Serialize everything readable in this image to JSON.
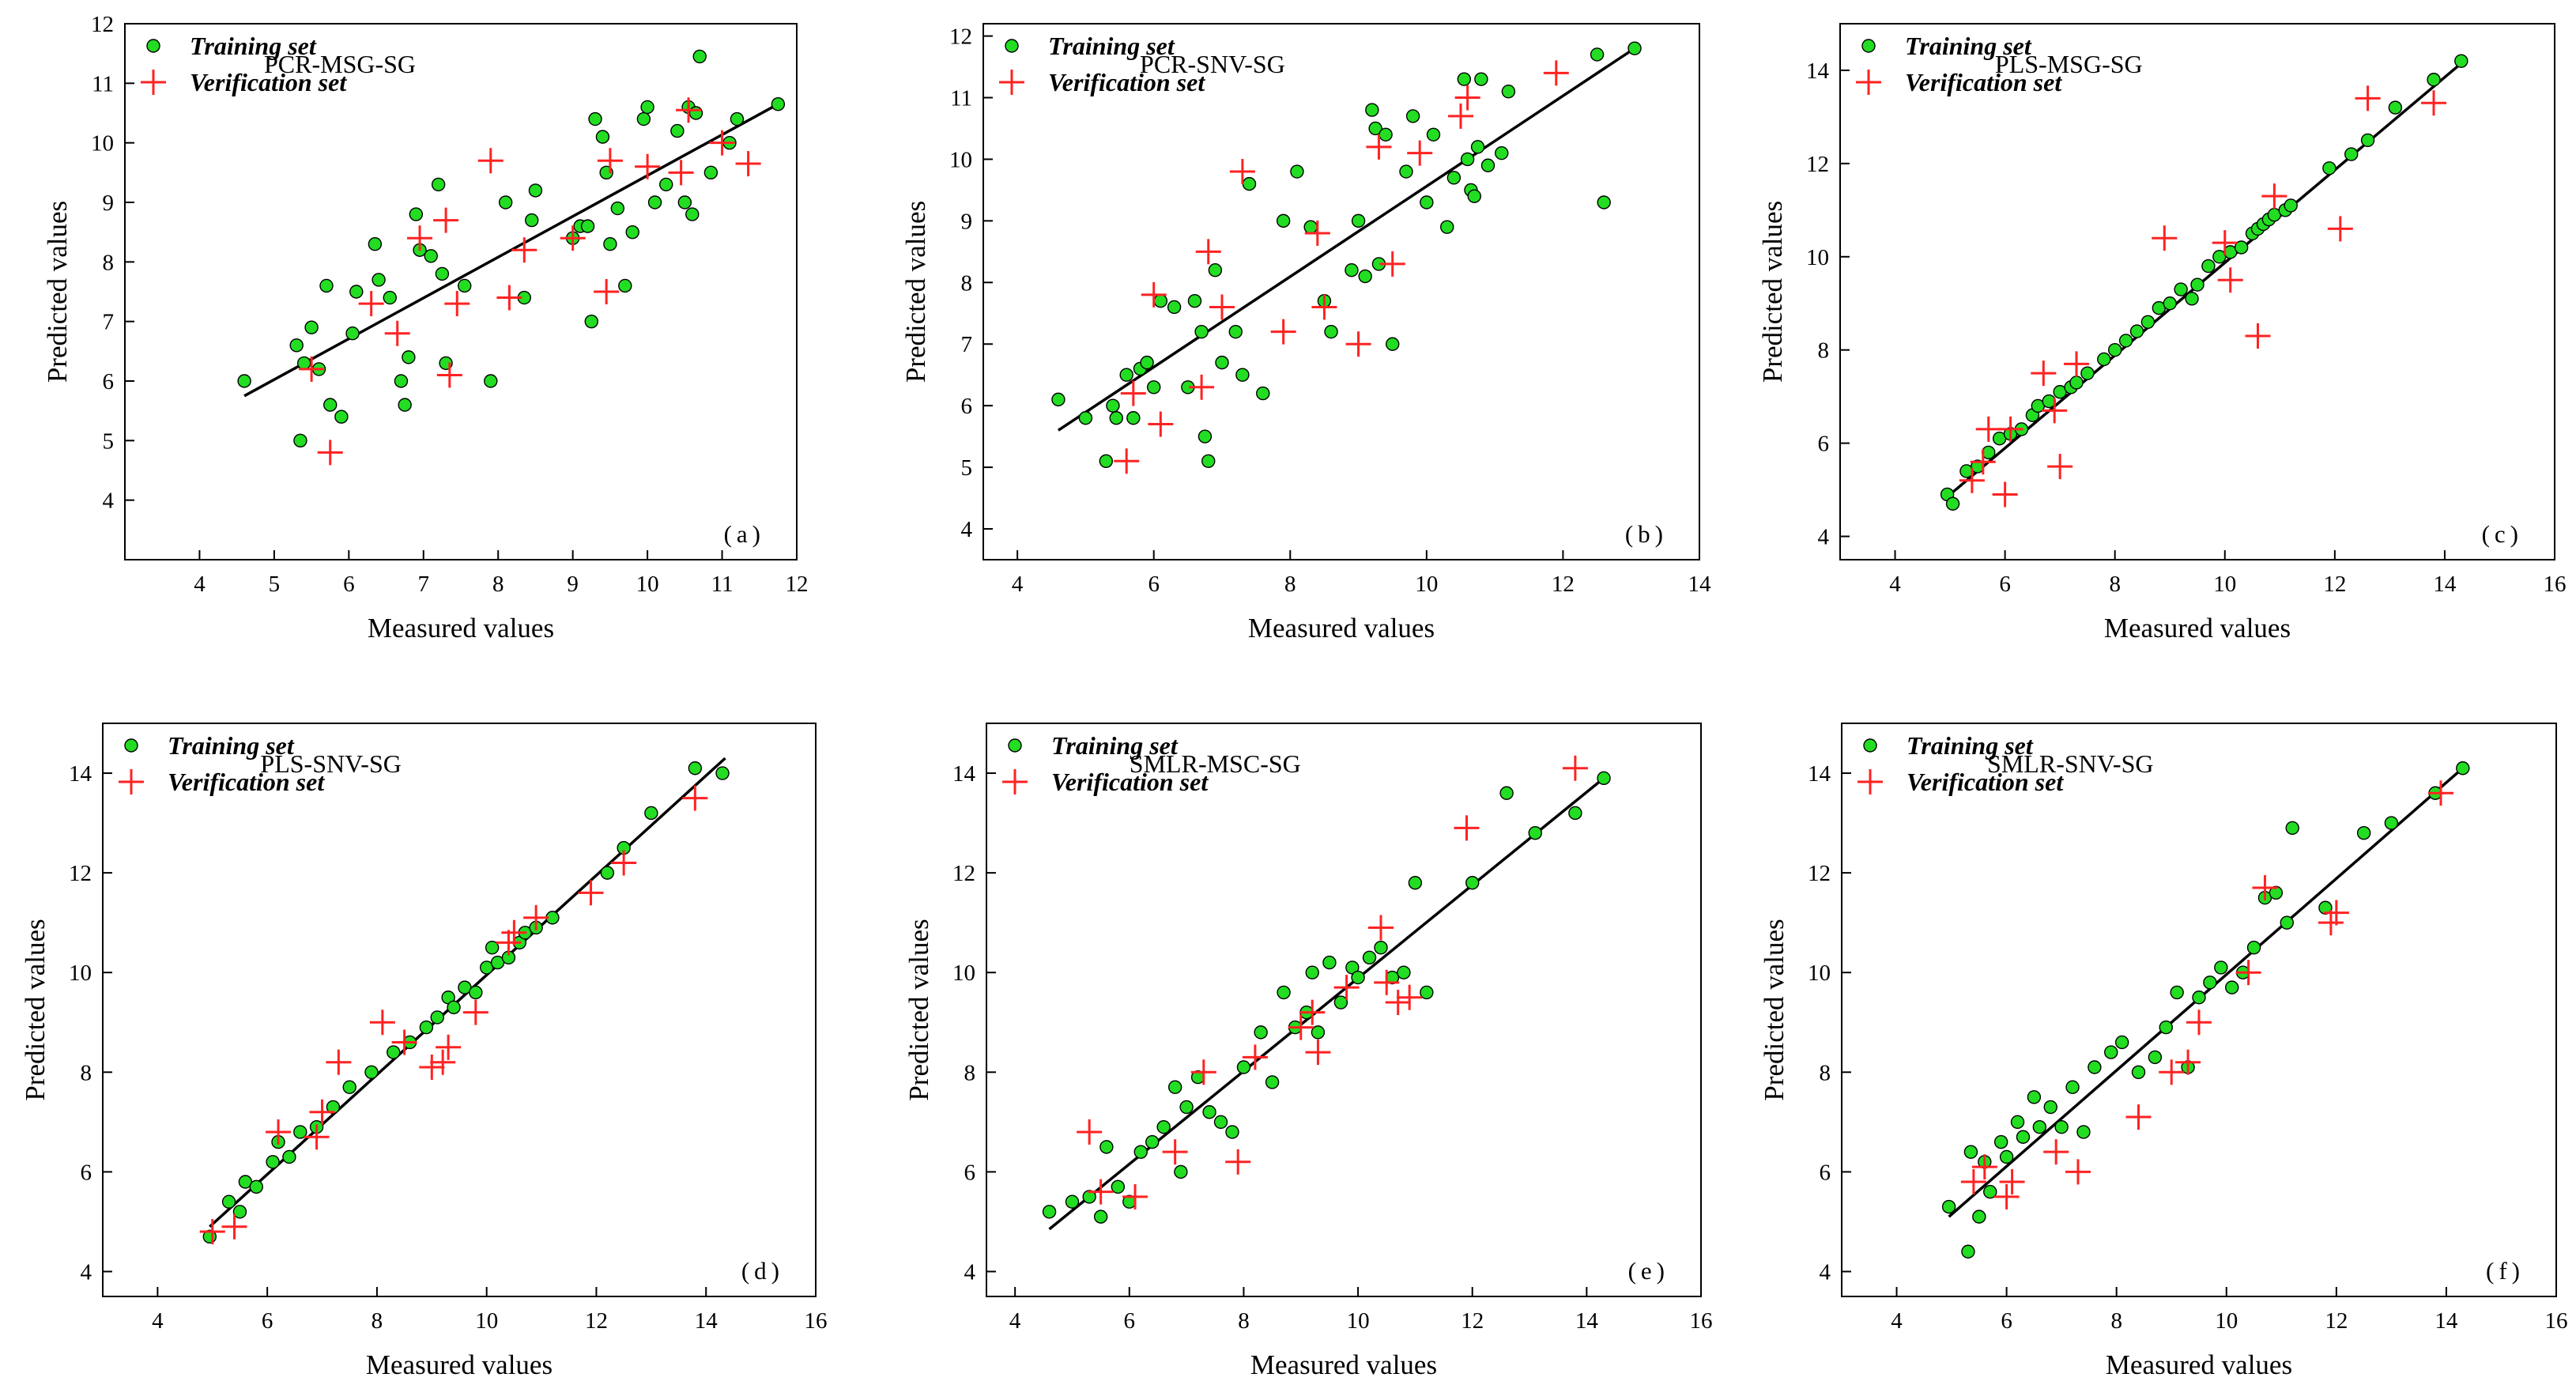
{
  "chart_data": [
    {
      "type": "scatter",
      "title": "PCR-MSG-SG",
      "panel_label": "(a)",
      "xlabel": "Measured values",
      "ylabel": "Predicted values",
      "xlim": [
        3,
        12
      ],
      "ylim": [
        3,
        12
      ],
      "xticks": [
        4,
        5,
        6,
        7,
        8,
        9,
        10,
        11,
        12
      ],
      "yticks": [
        4,
        5,
        6,
        7,
        8,
        9,
        10,
        11,
        12
      ],
      "legend": [
        "Training set",
        "Verification set"
      ],
      "fit_line": {
        "x": [
          4.6,
          11.75
        ],
        "y": [
          5.75,
          10.65
        ]
      },
      "series": [
        {
          "name": "Training set",
          "marker": "circle",
          "color": "#22dd22",
          "x": [
            4.6,
            5.3,
            5.35,
            5.4,
            5.5,
            5.6,
            5.7,
            5.75,
            5.9,
            6.05,
            6.1,
            6.35,
            6.4,
            6.55,
            6.7,
            6.75,
            6.8,
            6.9,
            6.95,
            7.1,
            7.2,
            7.25,
            7.3,
            7.55,
            7.9,
            8.1,
            8.35,
            8.45,
            8.5,
            9.0,
            9.1,
            9.2,
            9.25,
            9.3,
            9.4,
            9.45,
            9.5,
            9.6,
            9.7,
            9.8,
            9.95,
            10.0,
            10.1,
            10.25,
            10.4,
            10.5,
            10.55,
            10.6,
            10.65,
            10.7,
            10.85,
            11.1,
            11.2,
            11.75
          ],
          "y": [
            6.0,
            6.6,
            5.0,
            6.3,
            6.9,
            6.2,
            7.6,
            5.6,
            5.4,
            6.8,
            7.5,
            8.3,
            7.7,
            7.4,
            6.0,
            5.6,
            6.4,
            8.8,
            8.2,
            8.1,
            9.3,
            7.8,
            6.3,
            7.6,
            6.0,
            9.0,
            7.4,
            8.7,
            9.2,
            8.4,
            8.6,
            8.6,
            7.0,
            10.4,
            10.1,
            9.5,
            8.3,
            8.9,
            7.6,
            8.5,
            10.4,
            10.6,
            9.0,
            9.3,
            10.2,
            9.0,
            10.6,
            8.8,
            10.5,
            11.45,
            9.5,
            10.0,
            10.4,
            10.65
          ]
        },
        {
          "name": "Verification set",
          "marker": "plus",
          "color": "#ff2222",
          "x": [
            5.5,
            5.75,
            6.3,
            6.65,
            6.95,
            7.3,
            7.35,
            7.45,
            7.9,
            8.15,
            8.35,
            9.0,
            9.45,
            9.5,
            10.0,
            10.45,
            10.55,
            11.0,
            11.35
          ],
          "y": [
            6.2,
            4.8,
            7.3,
            6.8,
            8.4,
            8.7,
            6.1,
            7.3,
            9.7,
            7.4,
            8.2,
            8.4,
            7.5,
            9.7,
            9.6,
            9.5,
            10.55,
            10.0,
            9.65
          ]
        }
      ]
    },
    {
      "type": "scatter",
      "title": "PCR-SNV-SG",
      "panel_label": "(b)",
      "xlabel": "Measured values",
      "ylabel": "Predicted values",
      "xlim": [
        3.5,
        14
      ],
      "ylim": [
        3.5,
        12.2
      ],
      "xticks": [
        4,
        6,
        8,
        10,
        12,
        14
      ],
      "yticks": [
        4,
        5,
        6,
        7,
        8,
        9,
        10,
        11,
        12
      ],
      "legend": [
        "Training set",
        "Verification set"
      ],
      "fit_line": {
        "x": [
          4.6,
          13.05
        ],
        "y": [
          5.6,
          11.8
        ]
      },
      "series": [
        {
          "name": "Training set",
          "marker": "circle",
          "color": "#22dd22",
          "x": [
            4.6,
            5.0,
            5.3,
            5.4,
            5.45,
            5.6,
            5.7,
            5.8,
            5.9,
            6.0,
            6.1,
            6.3,
            6.5,
            6.6,
            6.7,
            6.75,
            6.8,
            6.9,
            7.0,
            7.2,
            7.3,
            7.4,
            7.6,
            7.9,
            8.1,
            8.3,
            8.5,
            8.6,
            8.9,
            9.0,
            9.1,
            9.2,
            9.25,
            9.3,
            9.4,
            9.5,
            9.7,
            9.8,
            10.0,
            10.1,
            10.3,
            10.4,
            10.55,
            10.6,
            10.65,
            10.7,
            10.75,
            10.8,
            10.9,
            11.1,
            11.2,
            12.5,
            12.6,
            13.05
          ],
          "y": [
            6.1,
            5.8,
            5.1,
            6.0,
            5.8,
            6.5,
            5.8,
            6.6,
            6.7,
            6.3,
            7.7,
            7.6,
            6.3,
            7.7,
            7.2,
            5.5,
            5.1,
            8.2,
            6.7,
            7.2,
            6.5,
            9.6,
            6.2,
            9.0,
            9.8,
            8.9,
            7.7,
            7.2,
            8.2,
            9.0,
            8.1,
            10.8,
            10.5,
            8.3,
            10.4,
            7.0,
            9.8,
            10.7,
            9.3,
            10.4,
            8.9,
            9.7,
            11.3,
            10.0,
            9.5,
            9.4,
            10.2,
            11.3,
            9.9,
            10.1,
            11.1,
            11.7,
            9.3,
            11.8
          ]
        },
        {
          "name": "Verification set",
          "marker": "plus",
          "color": "#ff2222",
          "x": [
            5.6,
            5.7,
            6.0,
            6.1,
            6.7,
            6.8,
            7.0,
            7.3,
            7.9,
            8.4,
            8.5,
            9.0,
            9.3,
            9.5,
            9.9,
            10.5,
            10.6,
            11.9
          ],
          "y": [
            5.1,
            6.2,
            7.8,
            5.7,
            6.3,
            8.5,
            7.6,
            9.8,
            7.2,
            8.8,
            7.6,
            7.0,
            10.2,
            8.3,
            10.1,
            10.7,
            11.0,
            11.4
          ]
        }
      ]
    },
    {
      "type": "scatter",
      "title": "PLS-MSG-SG",
      "panel_label": "(c)",
      "xlabel": "Measured values",
      "ylabel": "Predicted values",
      "xlim": [
        3,
        16
      ],
      "ylim": [
        3.5,
        15
      ],
      "xticks": [
        4,
        6,
        8,
        10,
        12,
        14,
        16
      ],
      "yticks": [
        4,
        6,
        8,
        10,
        12,
        14
      ],
      "legend": [
        "Training set",
        "Verification set"
      ],
      "fit_line": {
        "x": [
          4.95,
          14.35
        ],
        "y": [
          4.85,
          14.2
        ]
      },
      "series": [
        {
          "name": "Training set",
          "marker": "circle",
          "color": "#22dd22",
          "x": [
            4.95,
            5.05,
            5.3,
            5.5,
            5.7,
            5.9,
            6.1,
            6.3,
            6.5,
            6.6,
            6.8,
            7.0,
            7.2,
            7.3,
            7.5,
            7.8,
            8.0,
            8.2,
            8.4,
            8.6,
            8.8,
            9.0,
            9.2,
            9.4,
            9.5,
            9.7,
            9.9,
            10.1,
            10.3,
            10.5,
            10.6,
            10.7,
            10.8,
            10.9,
            11.1,
            11.2,
            11.9,
            12.3,
            12.6,
            13.1,
            13.8,
            14.3
          ],
          "y": [
            4.9,
            4.7,
            5.4,
            5.5,
            5.8,
            6.1,
            6.2,
            6.3,
            6.6,
            6.8,
            6.9,
            7.1,
            7.2,
            7.3,
            7.5,
            7.8,
            8.0,
            8.2,
            8.4,
            8.6,
            8.9,
            9.0,
            9.3,
            9.1,
            9.4,
            9.8,
            10.0,
            10.1,
            10.2,
            10.5,
            10.6,
            10.7,
            10.8,
            10.9,
            11.0,
            11.1,
            11.9,
            12.2,
            12.5,
            13.2,
            13.8,
            14.2
          ]
        },
        {
          "name": "Verification set",
          "marker": "plus",
          "color": "#ff2222",
          "x": [
            5.4,
            5.6,
            5.7,
            6.0,
            6.1,
            6.7,
            6.9,
            7.0,
            7.3,
            8.9,
            10.0,
            10.1,
            10.6,
            10.9,
            12.1,
            12.6,
            13.8
          ],
          "y": [
            5.2,
            5.6,
            6.3,
            4.9,
            6.3,
            7.5,
            6.7,
            5.5,
            7.7,
            10.4,
            10.3,
            9.5,
            8.3,
            11.3,
            10.6,
            13.4,
            13.3
          ]
        }
      ]
    },
    {
      "type": "scatter",
      "title": "PLS-SNV-SG",
      "panel_label": "(d)",
      "xlabel": "Measured values",
      "ylabel": "Predicted values",
      "xlim": [
        3,
        16
      ],
      "ylim": [
        3.5,
        15
      ],
      "xticks": [
        4,
        6,
        8,
        10,
        12,
        14,
        16
      ],
      "yticks": [
        4,
        6,
        8,
        10,
        12,
        14
      ],
      "legend": [
        "Training set",
        "Verification set"
      ],
      "fit_line": {
        "x": [
          4.95,
          14.35
        ],
        "y": [
          4.9,
          14.3
        ]
      },
      "series": [
        {
          "name": "Training set",
          "marker": "circle",
          "color": "#22dd22",
          "x": [
            4.95,
            5.3,
            5.5,
            5.6,
            5.8,
            6.1,
            6.2,
            6.4,
            6.6,
            6.9,
            7.2,
            7.5,
            7.9,
            8.3,
            8.6,
            8.9,
            9.1,
            9.3,
            9.4,
            9.6,
            9.8,
            10.0,
            10.1,
            10.2,
            10.4,
            10.6,
            10.7,
            10.9,
            11.2,
            12.2,
            12.5,
            13.0,
            13.8,
            14.3
          ],
          "y": [
            4.7,
            5.4,
            5.2,
            5.8,
            5.7,
            6.2,
            6.6,
            6.3,
            6.8,
            6.9,
            7.3,
            7.7,
            8.0,
            8.4,
            8.6,
            8.9,
            9.1,
            9.5,
            9.3,
            9.7,
            9.6,
            10.1,
            10.5,
            10.2,
            10.3,
            10.6,
            10.8,
            10.9,
            11.1,
            12.0,
            12.5,
            13.2,
            14.1,
            14.0
          ]
        },
        {
          "name": "Verification set",
          "marker": "plus",
          "color": "#ff2222",
          "x": [
            5.0,
            5.4,
            6.2,
            6.9,
            7.0,
            7.3,
            8.1,
            8.5,
            9.0,
            9.2,
            9.3,
            9.8,
            10.4,
            10.5,
            10.9,
            11.9,
            12.5,
            13.8
          ],
          "y": [
            4.8,
            4.9,
            6.8,
            6.7,
            7.2,
            8.2,
            9.0,
            8.6,
            8.1,
            8.2,
            8.5,
            9.2,
            10.6,
            10.8,
            11.1,
            11.6,
            12.2,
            13.5
          ]
        }
      ]
    },
    {
      "type": "scatter",
      "title": "SMLR-MSC-SG",
      "panel_label": "(e)",
      "xlabel": "Measured values",
      "ylabel": "Predicted values",
      "xlim": [
        3.5,
        16
      ],
      "ylim": [
        3.5,
        15
      ],
      "xticks": [
        4,
        6,
        8,
        10,
        12,
        14,
        16
      ],
      "yticks": [
        4,
        6,
        8,
        10,
        12,
        14
      ],
      "legend": [
        "Training set",
        "Verification set"
      ],
      "fit_line": {
        "x": [
          4.6,
          14.3
        ],
        "y": [
          4.85,
          13.9
        ]
      },
      "series": [
        {
          "name": "Training set",
          "marker": "circle",
          "color": "#22dd22",
          "x": [
            4.6,
            5.0,
            5.3,
            5.5,
            5.6,
            5.8,
            6.0,
            6.2,
            6.4,
            6.6,
            6.8,
            6.9,
            7.0,
            7.2,
            7.4,
            7.6,
            7.8,
            8.0,
            8.3,
            8.5,
            8.7,
            8.9,
            9.1,
            9.2,
            9.3,
            9.5,
            9.7,
            9.9,
            10.0,
            10.2,
            10.4,
            10.6,
            10.8,
            11.0,
            11.2,
            12.0,
            12.6,
            13.1,
            13.8,
            14.3
          ],
          "y": [
            5.2,
            5.4,
            5.5,
            5.1,
            6.5,
            5.7,
            5.4,
            6.4,
            6.6,
            6.9,
            7.7,
            6.0,
            7.3,
            7.9,
            7.2,
            7.0,
            6.8,
            8.1,
            8.8,
            7.8,
            9.6,
            8.9,
            9.2,
            10.0,
            8.8,
            10.2,
            9.4,
            10.1,
            9.9,
            10.3,
            10.5,
            9.9,
            10.0,
            11.8,
            9.6,
            11.8,
            13.6,
            12.8,
            13.2,
            13.9
          ]
        },
        {
          "name": "Verification set",
          "marker": "plus",
          "color": "#ff2222",
          "x": [
            5.3,
            5.5,
            6.1,
            6.8,
            7.3,
            7.9,
            8.2,
            9.0,
            9.2,
            9.3,
            9.8,
            10.4,
            10.5,
            10.7,
            10.9,
            11.9,
            13.8
          ],
          "y": [
            6.8,
            5.6,
            5.5,
            6.4,
            8.0,
            6.2,
            8.3,
            8.9,
            9.2,
            8.4,
            9.7,
            10.9,
            9.8,
            9.4,
            9.5,
            12.9,
            14.1
          ]
        }
      ]
    },
    {
      "type": "scatter",
      "title": "SMLR-SNV-SG",
      "panel_label": "(f)",
      "xlabel": "Measured values",
      "ylabel": "Predicted values",
      "xlim": [
        3,
        16
      ],
      "ylim": [
        3.5,
        15
      ],
      "xticks": [
        4,
        6,
        8,
        10,
        12,
        14,
        16
      ],
      "yticks": [
        4,
        6,
        8,
        10,
        12,
        14
      ],
      "legend": [
        "Training set",
        "Verification set"
      ],
      "fit_line": {
        "x": [
          4.95,
          14.3
        ],
        "y": [
          5.1,
          14.1
        ]
      },
      "series": [
        {
          "name": "Training set",
          "marker": "circle",
          "color": "#22dd22",
          "x": [
            4.95,
            5.3,
            5.35,
            5.5,
            5.6,
            5.7,
            5.9,
            6.0,
            6.2,
            6.3,
            6.5,
            6.6,
            6.8,
            7.0,
            7.2,
            7.4,
            7.6,
            7.9,
            8.1,
            8.4,
            8.7,
            8.9,
            9.1,
            9.3,
            9.5,
            9.7,
            9.9,
            10.1,
            10.3,
            10.5,
            10.7,
            10.9,
            11.1,
            11.2,
            11.8,
            12.5,
            13.0,
            13.8,
            14.3
          ],
          "y": [
            5.3,
            4.4,
            6.4,
            5.1,
            6.2,
            5.6,
            6.6,
            6.3,
            7.0,
            6.7,
            7.5,
            6.9,
            7.3,
            6.9,
            7.7,
            6.8,
            8.1,
            8.4,
            8.6,
            8.0,
            8.3,
            8.9,
            9.6,
            8.1,
            9.5,
            9.8,
            10.1,
            9.7,
            10.0,
            10.5,
            11.5,
            11.6,
            11.0,
            12.9,
            11.3,
            12.8,
            13.0,
            13.6,
            14.1
          ]
        },
        {
          "name": "Verification set",
          "marker": "plus",
          "color": "#ff2222",
          "x": [
            5.4,
            5.6,
            6.0,
            6.1,
            6.9,
            7.3,
            8.4,
            9.0,
            9.3,
            9.5,
            10.4,
            10.7,
            11.9,
            12.0,
            13.9
          ],
          "y": [
            5.8,
            6.1,
            5.5,
            5.8,
            6.4,
            6.0,
            7.1,
            8.0,
            8.2,
            9.0,
            10.0,
            11.7,
            11.0,
            11.2,
            13.6
          ]
        }
      ]
    }
  ]
}
